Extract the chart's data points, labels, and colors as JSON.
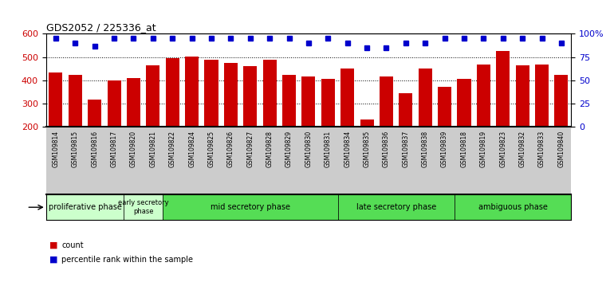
{
  "title": "GDS2052 / 225336_at",
  "samples": [
    "GSM109814",
    "GSM109815",
    "GSM109816",
    "GSM109817",
    "GSM109820",
    "GSM109821",
    "GSM109822",
    "GSM109824",
    "GSM109825",
    "GSM109826",
    "GSM109827",
    "GSM109828",
    "GSM109829",
    "GSM109830",
    "GSM109831",
    "GSM109834",
    "GSM109835",
    "GSM109836",
    "GSM109837",
    "GSM109838",
    "GSM109839",
    "GSM109818",
    "GSM109819",
    "GSM109823",
    "GSM109832",
    "GSM109833",
    "GSM109840"
  ],
  "counts": [
    435,
    422,
    318,
    400,
    410,
    463,
    496,
    503,
    487,
    475,
    460,
    487,
    425,
    418,
    405,
    450,
    232,
    418,
    345,
    452,
    373,
    408,
    469,
    528,
    463,
    469,
    422
  ],
  "percentile": [
    95,
    90,
    87,
    95,
    95,
    95,
    95,
    95,
    95,
    95,
    95,
    95,
    95,
    90,
    95,
    90,
    85,
    85,
    90,
    90,
    95,
    95,
    95,
    95,
    95,
    95,
    90
  ],
  "bar_color": "#cc0000",
  "dot_color": "#0000cc",
  "ylim_left": [
    200,
    600
  ],
  "ylim_right": [
    0,
    100
  ],
  "yticks_left": [
    200,
    300,
    400,
    500,
    600
  ],
  "yticks_right": [
    0,
    25,
    50,
    75,
    100
  ],
  "phases": [
    {
      "label": "proliferative phase",
      "start": 0,
      "end": 4,
      "color": "#ccffcc"
    },
    {
      "label": "early secretory\nphase",
      "start": 4,
      "end": 6,
      "color": "#ccffcc"
    },
    {
      "label": "mid secretory phase",
      "start": 6,
      "end": 15,
      "color": "#55dd55"
    },
    {
      "label": "late secretory phase",
      "start": 15,
      "end": 21,
      "color": "#55dd55"
    },
    {
      "label": "ambiguous phase",
      "start": 21,
      "end": 27,
      "color": "#55dd55"
    }
  ],
  "legend_count_color": "#cc0000",
  "legend_pct_color": "#0000cc",
  "tick_area_color": "#cccccc",
  "plot_bg_color": "#ffffff"
}
